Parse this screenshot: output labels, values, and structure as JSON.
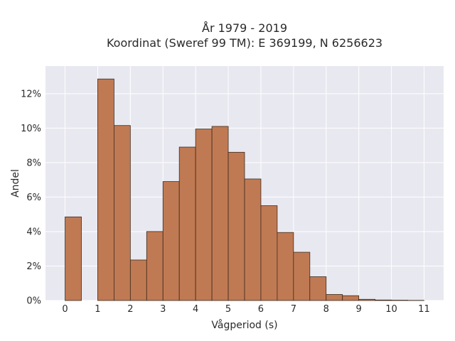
{
  "chart_data": {
    "type": "bar",
    "title_line1": "År 1979 - 2019",
    "title_line2": "Koordinat (Sweref 99 TM): E 369199, N 6256623",
    "xlabel": "Vågperiod (s)",
    "ylabel": "Andel",
    "xlim": [
      -0.6,
      11.6
    ],
    "ylim": [
      0,
      13.6
    ],
    "x_ticks": [
      {
        "value": 0,
        "label": "0"
      },
      {
        "value": 1,
        "label": "1"
      },
      {
        "value": 2,
        "label": "2"
      },
      {
        "value": 3,
        "label": "3"
      },
      {
        "value": 4,
        "label": "4"
      },
      {
        "value": 5,
        "label": "5"
      },
      {
        "value": 6,
        "label": "6"
      },
      {
        "value": 7,
        "label": "7"
      },
      {
        "value": 8,
        "label": "8"
      },
      {
        "value": 9,
        "label": "9"
      },
      {
        "value": 10,
        "label": "10"
      },
      {
        "value": 11,
        "label": "11"
      }
    ],
    "y_ticks": [
      {
        "value": 0,
        "label": "0%"
      },
      {
        "value": 2,
        "label": "2%"
      },
      {
        "value": 4,
        "label": "4%"
      },
      {
        "value": 6,
        "label": "6%"
      },
      {
        "value": 8,
        "label": "8%"
      },
      {
        "value": 10,
        "label": "10%"
      },
      {
        "value": 12,
        "label": "12%"
      }
    ],
    "bins": [
      {
        "x0": 0.0,
        "x1": 0.5,
        "value": 4.85
      },
      {
        "x0": 1.0,
        "x1": 1.5,
        "value": 12.85
      },
      {
        "x0": 1.5,
        "x1": 2.0,
        "value": 10.15
      },
      {
        "x0": 2.0,
        "x1": 2.5,
        "value": 2.35
      },
      {
        "x0": 2.5,
        "x1": 3.0,
        "value": 4.0
      },
      {
        "x0": 3.0,
        "x1": 3.5,
        "value": 6.9
      },
      {
        "x0": 3.5,
        "x1": 4.0,
        "value": 8.9
      },
      {
        "x0": 4.0,
        "x1": 4.5,
        "value": 9.95
      },
      {
        "x0": 4.5,
        "x1": 5.0,
        "value": 10.1
      },
      {
        "x0": 5.0,
        "x1": 5.5,
        "value": 8.6
      },
      {
        "x0": 5.5,
        "x1": 6.0,
        "value": 7.05
      },
      {
        "x0": 6.0,
        "x1": 6.5,
        "value": 5.5
      },
      {
        "x0": 6.5,
        "x1": 7.0,
        "value": 3.95
      },
      {
        "x0": 7.0,
        "x1": 7.5,
        "value": 2.8
      },
      {
        "x0": 7.5,
        "x1": 8.0,
        "value": 1.38
      },
      {
        "x0": 8.0,
        "x1": 8.5,
        "value": 0.35
      },
      {
        "x0": 8.5,
        "x1": 9.0,
        "value": 0.28
      },
      {
        "x0": 9.0,
        "x1": 9.5,
        "value": 0.07
      },
      {
        "x0": 9.5,
        "x1": 10.0,
        "value": 0.03
      },
      {
        "x0": 10.0,
        "x1": 10.5,
        "value": 0.02
      },
      {
        "x0": 10.5,
        "x1": 11.0,
        "value": 0.01
      }
    ],
    "grid": true,
    "colors": {
      "bar_fill": "#c07a53",
      "bar_edge": "#3d2a1e",
      "plot_background": "#e8e8f0",
      "grid": "#ffffff"
    }
  }
}
